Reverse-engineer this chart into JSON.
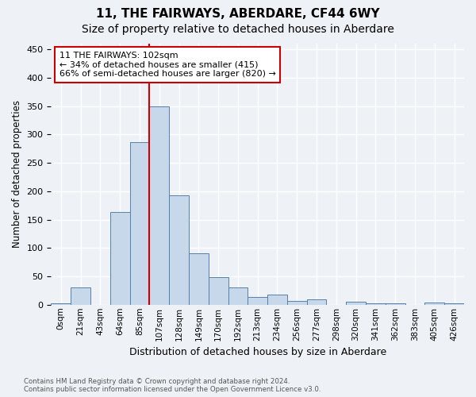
{
  "title": "11, THE FAIRWAYS, ABERDARE, CF44 6WY",
  "subtitle": "Size of property relative to detached houses in Aberdare",
  "xlabel": "Distribution of detached houses by size in Aberdare",
  "ylabel": "Number of detached properties",
  "footnote": "Contains HM Land Registry data © Crown copyright and database right 2024.\nContains public sector information licensed under the Open Government Licence v3.0.",
  "bar_labels": [
    "0sqm",
    "21sqm",
    "43sqm",
    "64sqm",
    "85sqm",
    "107sqm",
    "128sqm",
    "149sqm",
    "170sqm",
    "192sqm",
    "213sqm",
    "234sqm",
    "256sqm",
    "277sqm",
    "298sqm",
    "320sqm",
    "341sqm",
    "362sqm",
    "383sqm",
    "405sqm",
    "426sqm"
  ],
  "bar_values": [
    3,
    30,
    0,
    163,
    286,
    350,
    193,
    91,
    48,
    30,
    13,
    18,
    7,
    10,
    0,
    5,
    3,
    2,
    0,
    4,
    2
  ],
  "bar_color": "#c8d8eb",
  "bar_edge_color": "#5580a8",
  "vline_x": 4.5,
  "vline_color": "#cc0000",
  "annotation_text": "11 THE FAIRWAYS: 102sqm\n← 34% of detached houses are smaller (415)\n66% of semi-detached houses are larger (820) →",
  "annotation_box_color": "#ffffff",
  "annotation_box_edge": "#cc0000",
  "ylim": [
    0,
    460
  ],
  "background_color": "#eef2f7",
  "plot_bg_color": "#eef2f7",
  "grid_color": "#ffffff",
  "title_fontsize": 11,
  "subtitle_fontsize": 10
}
